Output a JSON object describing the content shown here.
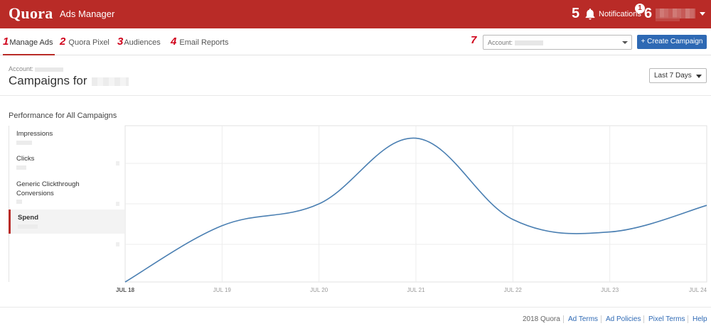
{
  "header": {
    "logo": "Quora",
    "app_title": "Ads Manager",
    "notifications_annotation": "5",
    "notifications_label": "Notifications",
    "notifications_count": "1",
    "user_annotation": "6"
  },
  "nav": {
    "tabs": [
      {
        "num": "1",
        "label": "Manage Ads",
        "active": true
      },
      {
        "num": "2",
        "label": "Quora Pixel",
        "active": false
      },
      {
        "num": "3",
        "label": "Audiences",
        "active": false
      },
      {
        "num": "4",
        "label": "Email Reports",
        "active": false
      }
    ],
    "account_annotation": "7",
    "account_label": "Account:",
    "create_button": "+ Create Campaign"
  },
  "page": {
    "account_label": "Account:",
    "title": "Campaigns for",
    "date_range": "Last 7 Days",
    "performance_title": "Performance for All Campaigns"
  },
  "metrics": [
    {
      "label": "Impressions",
      "active": false
    },
    {
      "label": "Clicks",
      "active": false
    },
    {
      "label": "Generic Clickthrough Conversions",
      "active": false
    },
    {
      "label": "Spend",
      "active": true
    }
  ],
  "chart_data": {
    "type": "line",
    "x": [
      "JUL 18",
      "JUL 19",
      "JUL 20",
      "JUL 21",
      "JUL 22",
      "JUL 23",
      "JUL 24"
    ],
    "bold_x": [
      "JUL 18"
    ],
    "series": [
      {
        "values": [
          0,
          0.36,
          0.5,
          0.92,
          0.4,
          0.32,
          0.49
        ]
      }
    ],
    "ylim": [
      0,
      1
    ],
    "grid": true,
    "line_color": "#4a7fb2"
  },
  "footer": {
    "copyright": "2018 Quora",
    "links": [
      "Ad Terms",
      "Ad Policies",
      "Pixel Terms",
      "Help"
    ]
  }
}
